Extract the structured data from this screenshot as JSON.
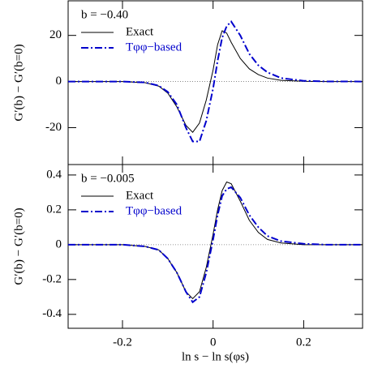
{
  "chart_data": [
    {
      "type": "line",
      "annotation": "b = −0.40",
      "ylabel": "G′(b) − G′(b=0)",
      "x": [
        -0.32,
        -0.2,
        -0.15,
        -0.12,
        -0.1,
        -0.08,
        -0.06,
        -0.045,
        -0.03,
        -0.015,
        0,
        0.01,
        0.02,
        0.03,
        0.04,
        0.06,
        0.08,
        0.1,
        0.12,
        0.15,
        0.2,
        0.25,
        0.33
      ],
      "series": [
        {
          "name": "Exact",
          "color": "#000000",
          "dash": "solid",
          "values": [
            0,
            0,
            -0.5,
            -2,
            -5,
            -11,
            -19,
            -22,
            -18,
            -8,
            5,
            16,
            22,
            21,
            17,
            10,
            5.5,
            3,
            1.5,
            0.5,
            0.1,
            0,
            0
          ]
        },
        {
          "name": "Tφφ−based",
          "color": "#0000cc",
          "dash": "dashdot",
          "values": [
            0,
            0,
            -0.4,
            -1.8,
            -4.5,
            -10,
            -20,
            -26,
            -26,
            -17,
            -3,
            9,
            19,
            24,
            26,
            20,
            12,
            7,
            4,
            1.5,
            0.3,
            0.05,
            0
          ]
        }
      ],
      "xlim": [
        -0.32,
        0.33
      ],
      "xticks": [
        -0.2,
        0,
        0.2
      ],
      "show_xtick_labels": false,
      "ylim": [
        -36,
        35
      ],
      "yticks": [
        -20,
        0,
        20
      ],
      "zero_line": true
    },
    {
      "type": "line",
      "annotation": "b = −0.005",
      "ylabel": "G′(b) − G′(b=0)",
      "xlabel": "ln s − ln s(φs)",
      "x": [
        -0.32,
        -0.2,
        -0.15,
        -0.12,
        -0.1,
        -0.08,
        -0.06,
        -0.045,
        -0.03,
        -0.015,
        0,
        0.01,
        0.02,
        0.03,
        0.04,
        0.06,
        0.08,
        0.1,
        0.12,
        0.15,
        0.2,
        0.25,
        0.33
      ],
      "series": [
        {
          "name": "Exact",
          "color": "#000000",
          "dash": "solid",
          "values": [
            0,
            0,
            -0.01,
            -0.03,
            -0.08,
            -0.16,
            -0.27,
            -0.31,
            -0.27,
            -0.13,
            0.06,
            0.2,
            0.31,
            0.36,
            0.35,
            0.25,
            0.14,
            0.07,
            0.03,
            0.01,
            0,
            0,
            0
          ]
        },
        {
          "name": "Tφφ−based",
          "color": "#0000cc",
          "dash": "dashdot",
          "values": [
            0,
            0,
            -0.01,
            -0.03,
            -0.08,
            -0.16,
            -0.27,
            -0.33,
            -0.3,
            -0.16,
            0.03,
            0.17,
            0.28,
            0.32,
            0.33,
            0.27,
            0.17,
            0.1,
            0.05,
            0.02,
            0.005,
            0,
            0
          ]
        }
      ],
      "xlim": [
        -0.32,
        0.33
      ],
      "xticks": [
        -0.2,
        0,
        0.2
      ],
      "show_xtick_labels": true,
      "ylim": [
        -0.48,
        0.46
      ],
      "yticks": [
        -0.4,
        -0.2,
        0,
        0.2,
        0.4
      ],
      "zero_line": true
    }
  ]
}
